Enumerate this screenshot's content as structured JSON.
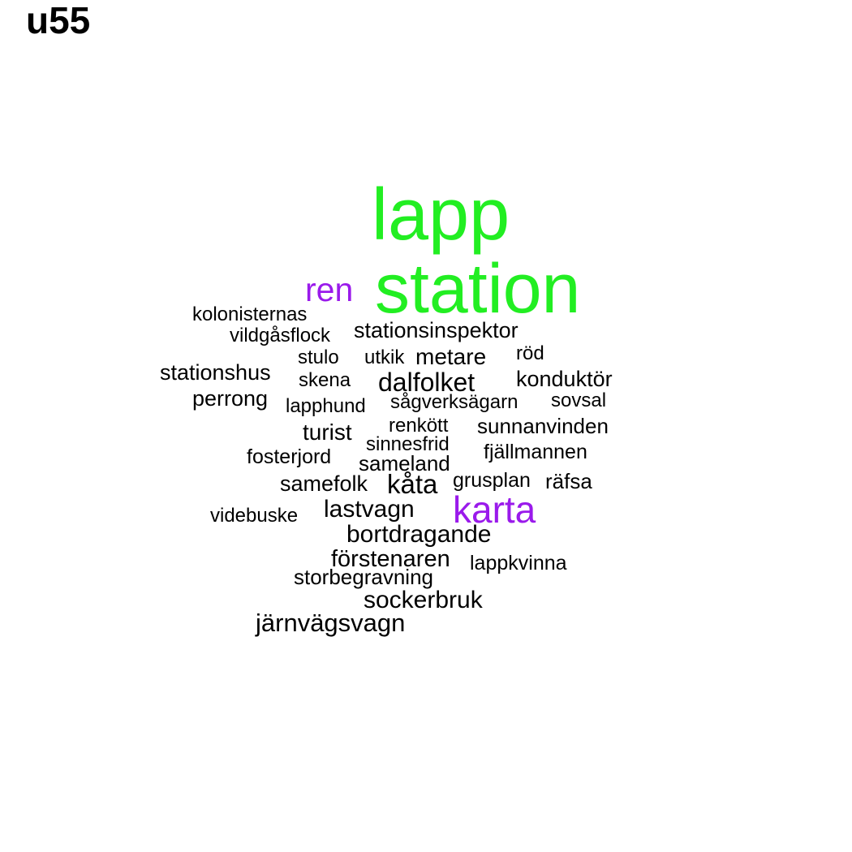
{
  "title": "u55",
  "colors": {
    "primary": "#22ee22",
    "secondary": "#9a1aeb",
    "default": "#000000"
  },
  "words": [
    {
      "text": "lapp",
      "weight": 10,
      "color": "primary"
    },
    {
      "text": "station",
      "weight": 10,
      "color": "primary"
    },
    {
      "text": "ren",
      "weight": 4,
      "color": "secondary"
    },
    {
      "text": "karta",
      "weight": 4,
      "color": "secondary"
    },
    {
      "text": "kolonisternas",
      "weight": 1,
      "color": "default"
    },
    {
      "text": "vildgåsflock",
      "weight": 1,
      "color": "default"
    },
    {
      "text": "stationsinspektor",
      "weight": 2,
      "color": "default"
    },
    {
      "text": "stulo",
      "weight": 1,
      "color": "default"
    },
    {
      "text": "utkik",
      "weight": 1,
      "color": "default"
    },
    {
      "text": "metare",
      "weight": 2,
      "color": "default"
    },
    {
      "text": "röd",
      "weight": 1,
      "color": "default"
    },
    {
      "text": "stationshus",
      "weight": 2,
      "color": "default"
    },
    {
      "text": "skena",
      "weight": 1,
      "color": "default"
    },
    {
      "text": "dalfolket",
      "weight": 3,
      "color": "default"
    },
    {
      "text": "konduktör",
      "weight": 2,
      "color": "default"
    },
    {
      "text": "perrong",
      "weight": 2,
      "color": "default"
    },
    {
      "text": "lapphund",
      "weight": 1,
      "color": "default"
    },
    {
      "text": "sågverksägarn",
      "weight": 1,
      "color": "default"
    },
    {
      "text": "sovsal",
      "weight": 1,
      "color": "default"
    },
    {
      "text": "renkött",
      "weight": 1,
      "color": "default"
    },
    {
      "text": "sunnanvinden",
      "weight": 2,
      "color": "default"
    },
    {
      "text": "turist",
      "weight": 2,
      "color": "default"
    },
    {
      "text": "sinnesfrid",
      "weight": 1,
      "color": "default"
    },
    {
      "text": "fjällmannen",
      "weight": 1,
      "color": "default"
    },
    {
      "text": "fosterjord",
      "weight": 1,
      "color": "default"
    },
    {
      "text": "sameland",
      "weight": 2,
      "color": "default"
    },
    {
      "text": "samefolk",
      "weight": 2,
      "color": "default"
    },
    {
      "text": "kåta",
      "weight": 3,
      "color": "default"
    },
    {
      "text": "grusplan",
      "weight": 1,
      "color": "default"
    },
    {
      "text": "räfsa",
      "weight": 1,
      "color": "default"
    },
    {
      "text": "videbuske",
      "weight": 1,
      "color": "default"
    },
    {
      "text": "lastvagn",
      "weight": 2,
      "color": "default"
    },
    {
      "text": "bortdragande",
      "weight": 2,
      "color": "default"
    },
    {
      "text": "förstenaren",
      "weight": 2,
      "color": "default"
    },
    {
      "text": "lappkvinna",
      "weight": 1,
      "color": "default"
    },
    {
      "text": "storbegravning",
      "weight": 1,
      "color": "default"
    },
    {
      "text": "sockerbruk",
      "weight": 2,
      "color": "default"
    },
    {
      "text": "järnvägsvagn",
      "weight": 2,
      "color": "default"
    }
  ]
}
